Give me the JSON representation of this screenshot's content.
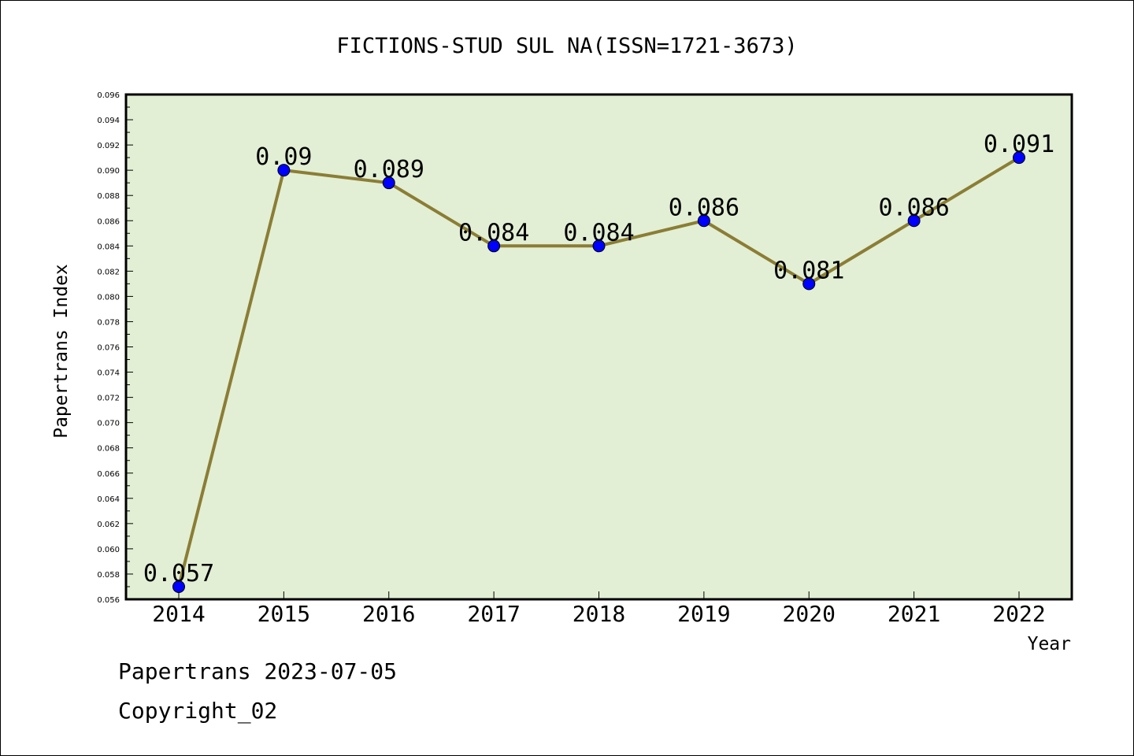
{
  "chart_data": {
    "type": "line",
    "title": "FICTIONS-STUD SUL NA(ISSN=1721-3673)",
    "xlabel": "Year",
    "ylabel": "Papertrans Index",
    "categories": [
      "2014",
      "2015",
      "2016",
      "2017",
      "2018",
      "2019",
      "2020",
      "2021",
      "2022"
    ],
    "values": [
      0.057,
      0.09,
      0.089,
      0.084,
      0.084,
      0.086,
      0.081,
      0.086,
      0.091
    ],
    "data_labels": [
      "0.057",
      "0.09",
      "0.089",
      "0.084",
      "0.084",
      "0.086",
      "0.081",
      "0.086",
      "0.091"
    ],
    "ylim": [
      0.056,
      0.096
    ],
    "yticks": [
      "0.056",
      "0.058",
      "0.060",
      "0.062",
      "0.064",
      "0.066",
      "0.068",
      "0.070",
      "0.072",
      "0.074",
      "0.076",
      "0.078",
      "0.080",
      "0.082",
      "0.084",
      "0.086",
      "0.088",
      "0.090",
      "0.092",
      "0.094",
      "0.096"
    ],
    "grid": false,
    "colors": {
      "plot_background": "#e2efd5",
      "line": "#8b7d35",
      "marker": "#0000ff"
    }
  },
  "footer": {
    "line1": "Papertrans 2023-07-05",
    "line2": "Copyright_02"
  }
}
